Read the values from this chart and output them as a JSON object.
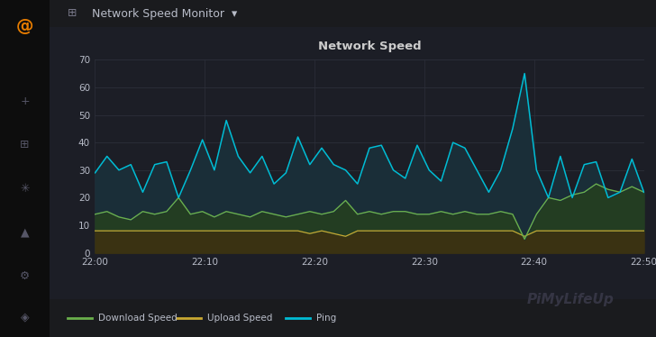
{
  "title": "Network Speed",
  "bg_outer": "#161616",
  "bg_header": "#1a1b1e",
  "chart_bg": "#1c1e26",
  "sidebar_bg": "#0d0d0d",
  "grid_color": "#2c2f3a",
  "text_color": "#b8bcc8",
  "title_color": "#cccccc",
  "download_color": "#6ab04c",
  "upload_color": "#c8a832",
  "ping_color": "#00bcd4",
  "download_fill": "#2a4a30",
  "upload_fill": "#3a3510",
  "teal_fill": "#1a3040",
  "ylim": [
    0,
    70
  ],
  "yticks": [
    0,
    10,
    20,
    30,
    40,
    50,
    60,
    70
  ],
  "x_labels": [
    "22:00",
    "22:10",
    "22:20",
    "22:30",
    "22:40",
    "22:50"
  ],
  "legend_labels": [
    "Download Speed",
    "Upload Speed",
    "Ping"
  ],
  "app_title": "Network Speed Monitor",
  "watermark": "PiMyLifeUp",
  "download": [
    14,
    15,
    13,
    12,
    15,
    14,
    15,
    20,
    14,
    15,
    13,
    15,
    14,
    13,
    15,
    14,
    13,
    14,
    15,
    14,
    15,
    19,
    14,
    15,
    14,
    15,
    15,
    14,
    14,
    15,
    14,
    15,
    14,
    14,
    15,
    14,
    5,
    14,
    20,
    19,
    21,
    22,
    25,
    23,
    22,
    24,
    22
  ],
  "upload": [
    8,
    8,
    8,
    8,
    8,
    8,
    8,
    8,
    8,
    8,
    8,
    8,
    8,
    8,
    8,
    8,
    8,
    8,
    7,
    8,
    7,
    6,
    8,
    8,
    8,
    8,
    8,
    8,
    8,
    8,
    8,
    8,
    8,
    8,
    8,
    8,
    6,
    8,
    8,
    8,
    8,
    8,
    8,
    8,
    8,
    8,
    8
  ],
  "ping": [
    29,
    35,
    30,
    32,
    22,
    32,
    33,
    20,
    30,
    41,
    30,
    48,
    35,
    29,
    35,
    25,
    29,
    42,
    32,
    38,
    32,
    30,
    25,
    38,
    39,
    30,
    27,
    39,
    30,
    26,
    40,
    38,
    30,
    22,
    30,
    45,
    65,
    30,
    20,
    35,
    20,
    32,
    33,
    20,
    22,
    34,
    22
  ]
}
